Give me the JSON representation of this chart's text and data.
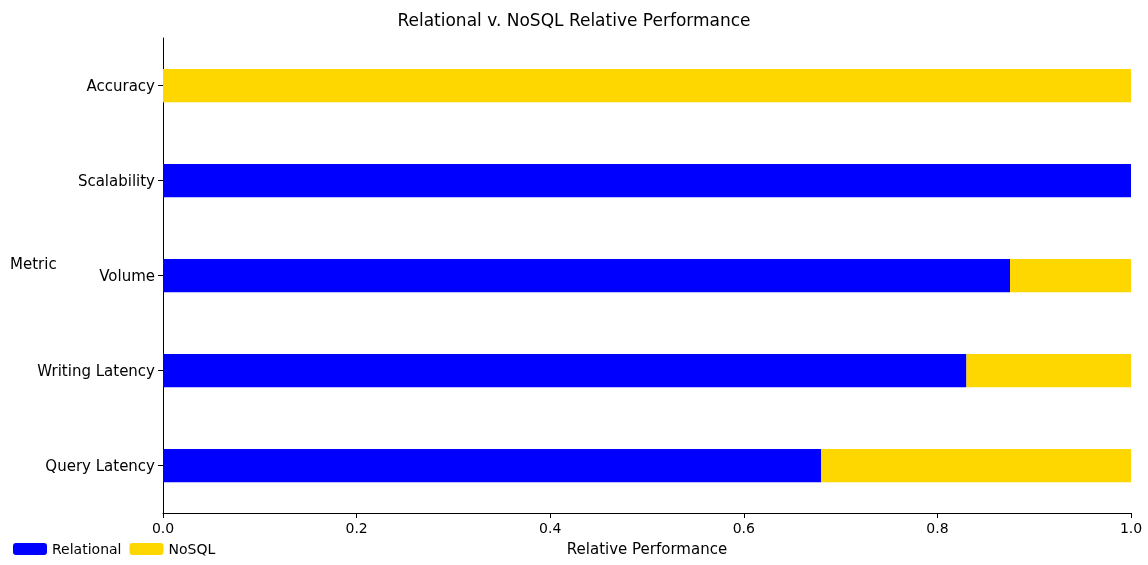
{
  "chart_data": {
    "type": "bar",
    "title": "Relational v. NoSQL Relative Performance",
    "xlabel": "Relative Performance",
    "ylabel": "Metric",
    "orientation": "horizontal",
    "stacked": true,
    "categories": [
      "Accuracy",
      "Scalability",
      "Volume",
      "Writing Latency",
      "Query Latency"
    ],
    "series": [
      {
        "name": "Relational",
        "color": "#0000ff",
        "values": [
          0,
          1,
          0.875,
          0.83,
          0.68
        ]
      },
      {
        "name": "NoSQL",
        "color": "#ffd700",
        "values": [
          1,
          0,
          0.125,
          0.17,
          0.32
        ]
      }
    ],
    "xlim": [
      0,
      1
    ],
    "xticks": [
      {
        "value": 0,
        "label": "0.0"
      },
      {
        "value": 0.2,
        "label": "0.2"
      },
      {
        "value": 0.4,
        "label": "0.4"
      },
      {
        "value": 0.6,
        "label": "0.6"
      },
      {
        "value": 0.8,
        "label": "0.8"
      },
      {
        "value": 1,
        "label": "1.0"
      }
    ],
    "grid": false,
    "legend": "bottom left"
  }
}
